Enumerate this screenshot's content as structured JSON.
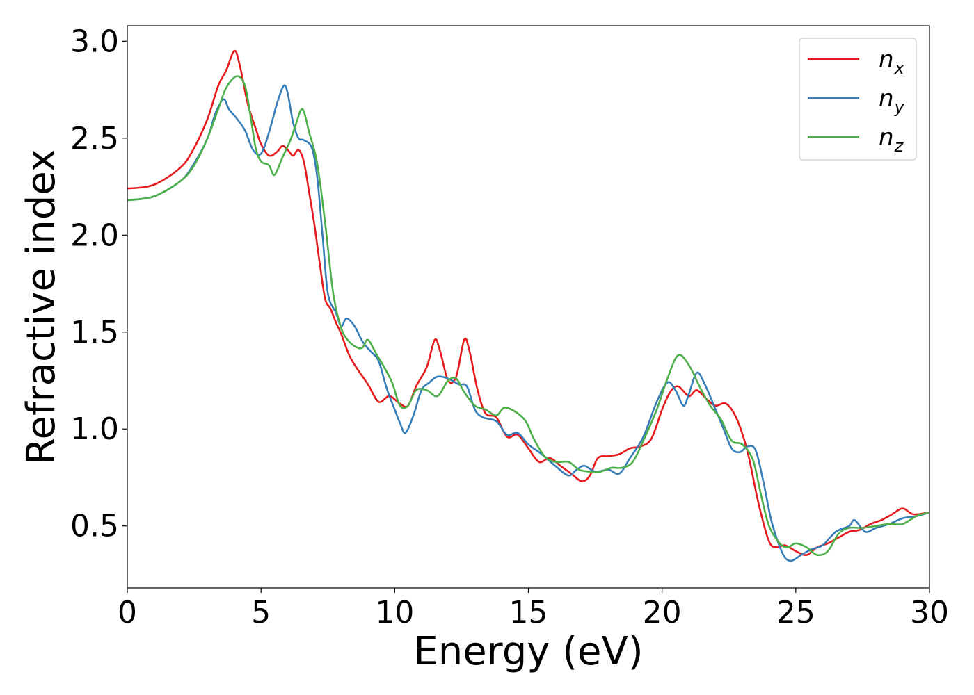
{
  "chart_data": {
    "type": "line",
    "title": "",
    "xlabel": "Energy (eV)",
    "ylabel": "Refractive index",
    "xlim": [
      0,
      30
    ],
    "ylim": [
      0.18,
      3.08
    ],
    "xticks": [
      "0",
      "5",
      "10",
      "15",
      "20",
      "25",
      "30"
    ],
    "yticks": [
      "0.5",
      "1.0",
      "1.5",
      "2.0",
      "2.5",
      "3.0"
    ],
    "grid": false,
    "legend_position": "top-right",
    "series": [
      {
        "name": "n",
        "subscript": "x",
        "color": "#e41a1c",
        "points": [
          [
            0,
            2.24
          ],
          [
            1,
            2.26
          ],
          [
            2,
            2.35
          ],
          [
            2.5,
            2.45
          ],
          [
            3,
            2.6
          ],
          [
            3.4,
            2.77
          ],
          [
            3.7,
            2.85
          ],
          [
            4.0,
            2.95
          ],
          [
            4.2,
            2.88
          ],
          [
            4.5,
            2.68
          ],
          [
            4.8,
            2.55
          ],
          [
            5.0,
            2.47
          ],
          [
            5.3,
            2.41
          ],
          [
            5.6,
            2.43
          ],
          [
            5.8,
            2.46
          ],
          [
            6.0,
            2.44
          ],
          [
            6.2,
            2.41
          ],
          [
            6.4,
            2.44
          ],
          [
            6.6,
            2.38
          ],
          [
            6.8,
            2.22
          ],
          [
            7.0,
            2.05
          ],
          [
            7.2,
            1.85
          ],
          [
            7.4,
            1.67
          ],
          [
            7.6,
            1.62
          ],
          [
            7.8,
            1.55
          ],
          [
            8.0,
            1.49
          ],
          [
            8.3,
            1.38
          ],
          [
            8.6,
            1.31
          ],
          [
            9.0,
            1.23
          ],
          [
            9.4,
            1.14
          ],
          [
            9.8,
            1.17
          ],
          [
            10.2,
            1.13
          ],
          [
            10.5,
            1.12
          ],
          [
            10.8,
            1.22
          ],
          [
            11.2,
            1.32
          ],
          [
            11.5,
            1.46
          ],
          [
            11.7,
            1.4
          ],
          [
            12.0,
            1.25
          ],
          [
            12.3,
            1.27
          ],
          [
            12.6,
            1.46
          ],
          [
            12.8,
            1.4
          ],
          [
            13.1,
            1.2
          ],
          [
            13.4,
            1.08
          ],
          [
            13.8,
            1.06
          ],
          [
            14.2,
            0.96
          ],
          [
            14.6,
            0.97
          ],
          [
            15.0,
            0.9
          ],
          [
            15.4,
            0.83
          ],
          [
            15.8,
            0.85
          ],
          [
            16.2,
            0.81
          ],
          [
            16.6,
            0.77
          ],
          [
            17.0,
            0.73
          ],
          [
            17.3,
            0.76
          ],
          [
            17.6,
            0.85
          ],
          [
            18.0,
            0.86
          ],
          [
            18.4,
            0.87
          ],
          [
            18.8,
            0.9
          ],
          [
            19.2,
            0.91
          ],
          [
            19.6,
            0.95
          ],
          [
            20.0,
            1.1
          ],
          [
            20.3,
            1.19
          ],
          [
            20.6,
            1.22
          ],
          [
            21.0,
            1.17
          ],
          [
            21.3,
            1.2
          ],
          [
            21.7,
            1.15
          ],
          [
            22.0,
            1.12
          ],
          [
            22.4,
            1.13
          ],
          [
            22.8,
            1.05
          ],
          [
            23.2,
            0.88
          ],
          [
            23.6,
            0.62
          ],
          [
            24.0,
            0.42
          ],
          [
            24.3,
            0.39
          ],
          [
            24.6,
            0.4
          ],
          [
            25.0,
            0.37
          ],
          [
            25.4,
            0.35
          ],
          [
            25.8,
            0.39
          ],
          [
            26.2,
            0.41
          ],
          [
            26.6,
            0.44
          ],
          [
            27.0,
            0.47
          ],
          [
            27.4,
            0.48
          ],
          [
            27.8,
            0.51
          ],
          [
            28.2,
            0.53
          ],
          [
            28.6,
            0.56
          ],
          [
            29.0,
            0.59
          ],
          [
            29.4,
            0.56
          ],
          [
            30.0,
            0.57
          ]
        ]
      },
      {
        "name": "n",
        "subscript": "y",
        "color": "#377eb8",
        "points": [
          [
            0,
            2.18
          ],
          [
            1,
            2.2
          ],
          [
            2,
            2.28
          ],
          [
            2.5,
            2.37
          ],
          [
            3.0,
            2.5
          ],
          [
            3.3,
            2.63
          ],
          [
            3.6,
            2.7
          ],
          [
            3.8,
            2.65
          ],
          [
            4.1,
            2.6
          ],
          [
            4.4,
            2.54
          ],
          [
            4.7,
            2.44
          ],
          [
            5.0,
            2.42
          ],
          [
            5.3,
            2.53
          ],
          [
            5.6,
            2.68
          ],
          [
            5.85,
            2.77
          ],
          [
            6.0,
            2.73
          ],
          [
            6.2,
            2.58
          ],
          [
            6.4,
            2.5
          ],
          [
            6.6,
            2.49
          ],
          [
            6.9,
            2.45
          ],
          [
            7.1,
            2.3
          ],
          [
            7.3,
            2.0
          ],
          [
            7.5,
            1.7
          ],
          [
            7.8,
            1.6
          ],
          [
            8.0,
            1.53
          ],
          [
            8.2,
            1.57
          ],
          [
            8.5,
            1.53
          ],
          [
            8.8,
            1.45
          ],
          [
            9.1,
            1.4
          ],
          [
            9.4,
            1.35
          ],
          [
            9.7,
            1.21
          ],
          [
            10.0,
            1.1
          ],
          [
            10.2,
            1.03
          ],
          [
            10.4,
            0.98
          ],
          [
            10.7,
            1.07
          ],
          [
            11.0,
            1.2
          ],
          [
            11.3,
            1.24
          ],
          [
            11.6,
            1.27
          ],
          [
            12.0,
            1.26
          ],
          [
            12.4,
            1.23
          ],
          [
            12.7,
            1.22
          ],
          [
            13.0,
            1.1
          ],
          [
            13.3,
            1.06
          ],
          [
            13.8,
            1.04
          ],
          [
            14.2,
            0.97
          ],
          [
            14.6,
            0.98
          ],
          [
            15.0,
            0.92
          ],
          [
            15.5,
            0.87
          ],
          [
            16.0,
            0.81
          ],
          [
            16.5,
            0.76
          ],
          [
            16.8,
            0.79
          ],
          [
            17.1,
            0.81
          ],
          [
            17.5,
            0.78
          ],
          [
            18.0,
            0.79
          ],
          [
            18.4,
            0.77
          ],
          [
            18.8,
            0.85
          ],
          [
            19.3,
            0.96
          ],
          [
            19.8,
            1.14
          ],
          [
            20.2,
            1.24
          ],
          [
            20.5,
            1.2
          ],
          [
            20.8,
            1.12
          ],
          [
            21.0,
            1.18
          ],
          [
            21.3,
            1.29
          ],
          [
            21.6,
            1.23
          ],
          [
            22.0,
            1.1
          ],
          [
            22.3,
            1.0
          ],
          [
            22.6,
            0.9
          ],
          [
            22.9,
            0.88
          ],
          [
            23.2,
            0.91
          ],
          [
            23.5,
            0.89
          ],
          [
            23.8,
            0.72
          ],
          [
            24.1,
            0.52
          ],
          [
            24.5,
            0.36
          ],
          [
            24.8,
            0.32
          ],
          [
            25.2,
            0.35
          ],
          [
            25.6,
            0.38
          ],
          [
            26.0,
            0.4
          ],
          [
            26.5,
            0.47
          ],
          [
            27.0,
            0.5
          ],
          [
            27.2,
            0.53
          ],
          [
            27.6,
            0.47
          ],
          [
            28.0,
            0.49
          ],
          [
            28.5,
            0.51
          ],
          [
            29.0,
            0.54
          ],
          [
            29.5,
            0.55
          ],
          [
            30.0,
            0.57
          ]
        ]
      },
      {
        "name": "n",
        "subscript": "z",
        "color": "#4daf4a",
        "points": [
          [
            0,
            2.18
          ],
          [
            1,
            2.2
          ],
          [
            2,
            2.28
          ],
          [
            2.5,
            2.36
          ],
          [
            3.0,
            2.5
          ],
          [
            3.4,
            2.65
          ],
          [
            3.7,
            2.76
          ],
          [
            4.1,
            2.82
          ],
          [
            4.4,
            2.77
          ],
          [
            4.6,
            2.62
          ],
          [
            4.8,
            2.45
          ],
          [
            5.0,
            2.38
          ],
          [
            5.3,
            2.36
          ],
          [
            5.5,
            2.31
          ],
          [
            5.8,
            2.4
          ],
          [
            6.1,
            2.49
          ],
          [
            6.3,
            2.57
          ],
          [
            6.55,
            2.65
          ],
          [
            6.8,
            2.53
          ],
          [
            7.1,
            2.37
          ],
          [
            7.4,
            2.06
          ],
          [
            7.7,
            1.7
          ],
          [
            8.0,
            1.52
          ],
          [
            8.3,
            1.45
          ],
          [
            8.6,
            1.42
          ],
          [
            8.8,
            1.42
          ],
          [
            9.0,
            1.46
          ],
          [
            9.3,
            1.39
          ],
          [
            9.6,
            1.32
          ],
          [
            9.9,
            1.24
          ],
          [
            10.2,
            1.12
          ],
          [
            10.5,
            1.12
          ],
          [
            10.8,
            1.2
          ],
          [
            11.2,
            1.2
          ],
          [
            11.6,
            1.17
          ],
          [
            12.0,
            1.25
          ],
          [
            12.3,
            1.26
          ],
          [
            12.6,
            1.19
          ],
          [
            13.0,
            1.12
          ],
          [
            13.4,
            1.1
          ],
          [
            13.8,
            1.07
          ],
          [
            14.1,
            1.11
          ],
          [
            14.5,
            1.09
          ],
          [
            14.9,
            1.04
          ],
          [
            15.2,
            0.95
          ],
          [
            15.6,
            0.86
          ],
          [
            16.0,
            0.83
          ],
          [
            16.5,
            0.83
          ],
          [
            16.9,
            0.79
          ],
          [
            17.3,
            0.78
          ],
          [
            17.7,
            0.78
          ],
          [
            18.1,
            0.8
          ],
          [
            18.5,
            0.8
          ],
          [
            18.9,
            0.83
          ],
          [
            19.3,
            0.94
          ],
          [
            19.8,
            1.1
          ],
          [
            20.2,
            1.26
          ],
          [
            20.6,
            1.38
          ],
          [
            21.0,
            1.33
          ],
          [
            21.4,
            1.22
          ],
          [
            21.8,
            1.12
          ],
          [
            22.2,
            1.05
          ],
          [
            22.6,
            0.94
          ],
          [
            23.0,
            0.92
          ],
          [
            23.4,
            0.84
          ],
          [
            23.7,
            0.66
          ],
          [
            24.0,
            0.5
          ],
          [
            24.4,
            0.41
          ],
          [
            24.7,
            0.39
          ],
          [
            25.0,
            0.41
          ],
          [
            25.4,
            0.39
          ],
          [
            25.8,
            0.35
          ],
          [
            26.2,
            0.37
          ],
          [
            26.6,
            0.46
          ],
          [
            27.0,
            0.49
          ],
          [
            27.5,
            0.49
          ],
          [
            28.0,
            0.5
          ],
          [
            28.5,
            0.51
          ],
          [
            29.0,
            0.51
          ],
          [
            29.5,
            0.55
          ],
          [
            30.0,
            0.57
          ]
        ]
      }
    ]
  }
}
